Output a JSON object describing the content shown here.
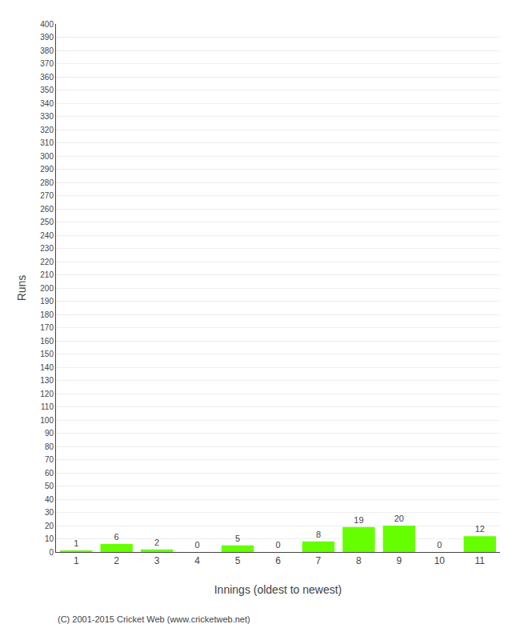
{
  "chart_data": {
    "type": "bar",
    "categories": [
      "1",
      "2",
      "3",
      "4",
      "5",
      "6",
      "7",
      "8",
      "9",
      "10",
      "11"
    ],
    "values": [
      1,
      6,
      2,
      0,
      5,
      0,
      8,
      19,
      20,
      0,
      12
    ],
    "color": "#66ff00",
    "data_labels": true,
    "xlabel": "Innings (oldest to newest)",
    "ylabel": "Runs",
    "ylim": [
      0,
      400
    ],
    "yticks": [
      0,
      10,
      20,
      30,
      40,
      50,
      60,
      70,
      80,
      90,
      100,
      110,
      120,
      130,
      140,
      150,
      160,
      170,
      180,
      190,
      200,
      210,
      220,
      230,
      240,
      250,
      260,
      270,
      280,
      290,
      300,
      310,
      320,
      330,
      340,
      350,
      360,
      370,
      380,
      390,
      400
    ],
    "grid": true,
    "annotations": [
      "(C) 2001-2015 Cricket Web (www.cricketweb.net)"
    ]
  }
}
